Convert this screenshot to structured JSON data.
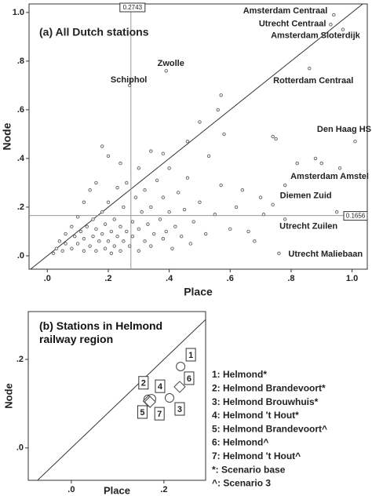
{
  "chart_data": [
    {
      "type": "scatter",
      "title": "(a) All Dutch stations",
      "x_label": "Place",
      "y_label": "Node",
      "xlim": [
        -0.06,
        1.05
      ],
      "ylim": [
        -0.055,
        1.035
      ],
      "xticks": [
        {
          "value": 0,
          "label": ".0"
        },
        {
          "value": 0.2,
          "label": ".2"
        },
        {
          "value": 0.4,
          "label": ".4"
        },
        {
          "value": 0.6,
          "label": ".6"
        },
        {
          "value": 0.8,
          "label": ".8"
        },
        {
          "value": 1,
          "label": "1.0"
        }
      ],
      "yticks": [
        {
          "value": 0,
          "label": ".0"
        },
        {
          "value": 0.2,
          "label": ".2"
        },
        {
          "value": 0.4,
          "label": ".4"
        },
        {
          "value": 0.6,
          "label": ".6"
        },
        {
          "value": 0.8,
          "label": ".8"
        },
        {
          "value": 1,
          "label": "1.0"
        }
      ],
      "reference_lines": {
        "x": {
          "value": 0.2743,
          "label": "0.2743"
        },
        "y": {
          "value": 0.1656,
          "label": "0.1656"
        }
      },
      "diagonal": true,
      "color": "#555555",
      "series": [
        {
          "x": [
            0.03,
            0.05,
            0.06,
            0.08,
            0.09,
            0.1,
            0.11,
            0.12,
            0.12,
            0.13,
            0.14,
            0.15,
            0.15,
            0.16,
            0.16,
            0.17,
            0.18,
            0.18,
            0.19,
            0.19,
            0.2,
            0.2,
            0.21,
            0.21,
            0.22,
            0.22,
            0.23,
            0.23,
            0.24,
            0.24,
            0.25,
            0.25,
            0.26,
            0.26,
            0.27,
            0.28,
            0.28,
            0.29,
            0.3,
            0.3,
            0.31,
            0.32,
            0.32,
            0.33,
            0.34,
            0.34,
            0.35,
            0.36,
            0.37,
            0.38,
            0.38,
            0.39,
            0.4,
            0.4,
            0.41,
            0.42,
            0.43,
            0.44,
            0.45,
            0.46,
            0.47,
            0.48,
            0.5,
            0.52,
            0.53,
            0.55,
            0.57,
            0.58,
            0.6,
            0.62,
            0.64,
            0.66,
            0.68,
            0.7,
            0.71,
            0.74,
            0.75,
            0.78,
            0.82,
            0.88,
            0.9,
            0.95,
            0.16,
            0.18,
            0.2,
            0.24,
            0.3,
            0.34,
            0.38,
            0.46,
            0.5,
            0.56,
            0.57,
            0.12,
            0.1,
            0.14,
            0.08,
            0.06,
            0.04,
            0.02
          ],
          "y": [
            0.03,
            0.02,
            0.05,
            0.03,
            0.08,
            0.05,
            0.1,
            0.02,
            0.07,
            0.12,
            0.04,
            0.08,
            0.15,
            0.02,
            0.11,
            0.06,
            0.09,
            0.18,
            0.03,
            0.13,
            0.06,
            0.22,
            0.1,
            0.01,
            0.15,
            0.04,
            0.08,
            0.28,
            0.12,
            0.02,
            0.2,
            0.06,
            0.1,
            0.3,
            0.04,
            0.14,
            0.08,
            0.24,
            0.02,
            0.11,
            0.18,
            0.06,
            0.27,
            0.13,
            0.2,
            0.04,
            0.09,
            0.31,
            0.15,
            0.07,
            0.24,
            0.1,
            0.36,
            0.18,
            0.03,
            0.12,
            0.26,
            0.08,
            0.19,
            0.32,
            0.05,
            0.14,
            0.22,
            0.09,
            0.41,
            0.17,
            0.29,
            0.5,
            0.11,
            0.2,
            0.27,
            0.1,
            0.06,
            0.24,
            0.17,
            0.49,
            0.48,
            0.29,
            0.38,
            0.4,
            0.38,
            0.18,
            0.3,
            0.45,
            0.41,
            0.38,
            0.36,
            0.43,
            0.42,
            0.47,
            0.55,
            0.6,
            0.66,
            0.22,
            0.16,
            0.27,
            0.12,
            0.09,
            0.06,
            0.01
          ]
        },
        {
          "labels": [
            "Amsterdam Centraal",
            "Utrecht Centraal",
            "Amsterdam Sloterdijk",
            "Rotterdam Centraal",
            "Zwolle",
            "Schiphol",
            "Den Haag HS",
            "Amsterdam Amstel",
            "Diemen Zuid",
            "Utrecht Zuilen",
            "Utrecht Maliebaan"
          ],
          "x": [
            0.94,
            0.93,
            0.97,
            0.86,
            0.39,
            0.27,
            1.01,
            0.96,
            0.74,
            0.78,
            0.76
          ],
          "y": [
            0.99,
            0.95,
            0.93,
            0.77,
            0.76,
            0.7,
            0.47,
            0.36,
            0.21,
            0.15,
            0.01
          ]
        }
      ]
    },
    {
      "type": "scatter",
      "title": "(b) Stations in Helmond railway region",
      "x_label": "Place",
      "y_label": "Node",
      "xlim": [
        -0.093,
        0.29
      ],
      "ylim": [
        -0.073,
        0.308
      ],
      "xticks": [
        {
          "value": 0,
          "label": ".0"
        },
        {
          "value": 0.2,
          "label": ".2"
        }
      ],
      "yticks": [
        {
          "value": 0,
          "label": ".0"
        },
        {
          "value": 0.2,
          "label": ".2"
        }
      ],
      "diagonal": true,
      "color": "#444444",
      "series": [
        {
          "labels": [
            "1",
            "2",
            "3",
            "4",
            "5",
            "6",
            "7"
          ],
          "marker": [
            "circle",
            "circle",
            "circle",
            "circle",
            "diamond",
            "diamond",
            "diamond"
          ],
          "x": [
            0.236,
            0.166,
            0.212,
            0.173,
            0.167,
            0.234,
            0.17
          ],
          "y": [
            0.184,
            0.11,
            0.113,
            0.111,
            0.106,
            0.138,
            0.104
          ]
        }
      ],
      "legend": [
        "1: Helmond*",
        "2: Helmond Brandevoort*",
        "3: Helmond Brouwhuis*",
        "4: Helmond 't Hout*",
        "5: Helmond Brandevoort^",
        "6: Helmond^",
        "7: Helmond 't Hout^",
        "*: Scenario base",
        "^: Scenario 3"
      ]
    }
  ]
}
